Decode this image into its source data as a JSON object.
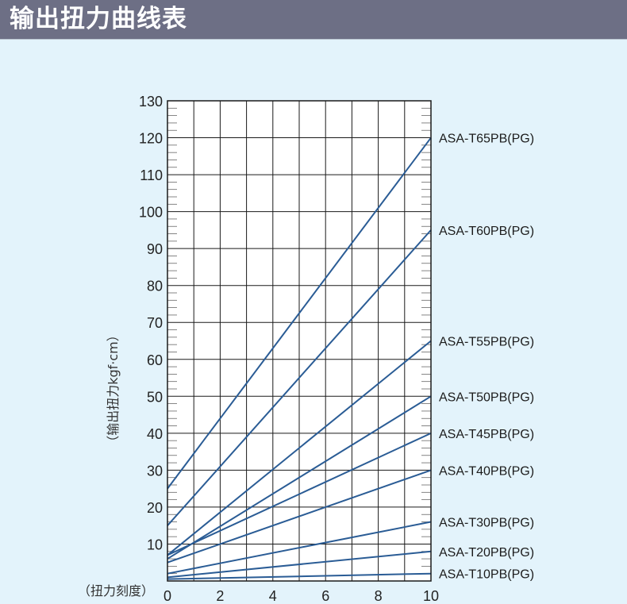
{
  "header": {
    "title": "输出扭力曲线表"
  },
  "colors": {
    "header_bg": "#6d6f85",
    "page_bg": "#e3f3fb",
    "plot_bg": "#ffffff",
    "grid": "#1a1a1a",
    "line": "#2a5c95"
  },
  "chart_data": {
    "type": "line",
    "title": "",
    "xlabel": "（扭力刻度）",
    "ylabel": "（输出扭力kgf·cm）",
    "xlim": [
      0,
      10
    ],
    "ylim": [
      0,
      130
    ],
    "x_ticks": [
      0,
      2,
      4,
      6,
      8,
      10
    ],
    "y_ticks": [
      10,
      20,
      30,
      40,
      50,
      60,
      70,
      80,
      90,
      100,
      110,
      120,
      130
    ],
    "grid": true,
    "legend": "labels at right end of each line",
    "series": [
      {
        "name": "ASA-T65PB(PG)",
        "x": [
          0,
          10
        ],
        "y": [
          25,
          120
        ]
      },
      {
        "name": "ASA-T60PB(PG)",
        "x": [
          0,
          10
        ],
        "y": [
          15,
          95
        ]
      },
      {
        "name": "ASA-T55PB(PG)",
        "x": [
          0,
          10
        ],
        "y": [
          7,
          65
        ]
      },
      {
        "name": "ASA-T50PB(PG)",
        "x": [
          0,
          10
        ],
        "y": [
          6,
          50
        ]
      },
      {
        "name": "ASA-T45PB(PG)",
        "x": [
          0,
          10
        ],
        "y": [
          7,
          40
        ]
      },
      {
        "name": "ASA-T40PB(PG)",
        "x": [
          0,
          10
        ],
        "y": [
          5,
          30
        ]
      },
      {
        "name": "ASA-T30PB(PG)",
        "x": [
          0,
          10
        ],
        "y": [
          2,
          16
        ]
      },
      {
        "name": "ASA-T20PB(PG)",
        "x": [
          0,
          10
        ],
        "y": [
          1,
          8
        ]
      },
      {
        "name": "ASA-T10PB(PG)",
        "x": [
          0,
          10
        ],
        "y": [
          0.5,
          2
        ]
      }
    ]
  }
}
